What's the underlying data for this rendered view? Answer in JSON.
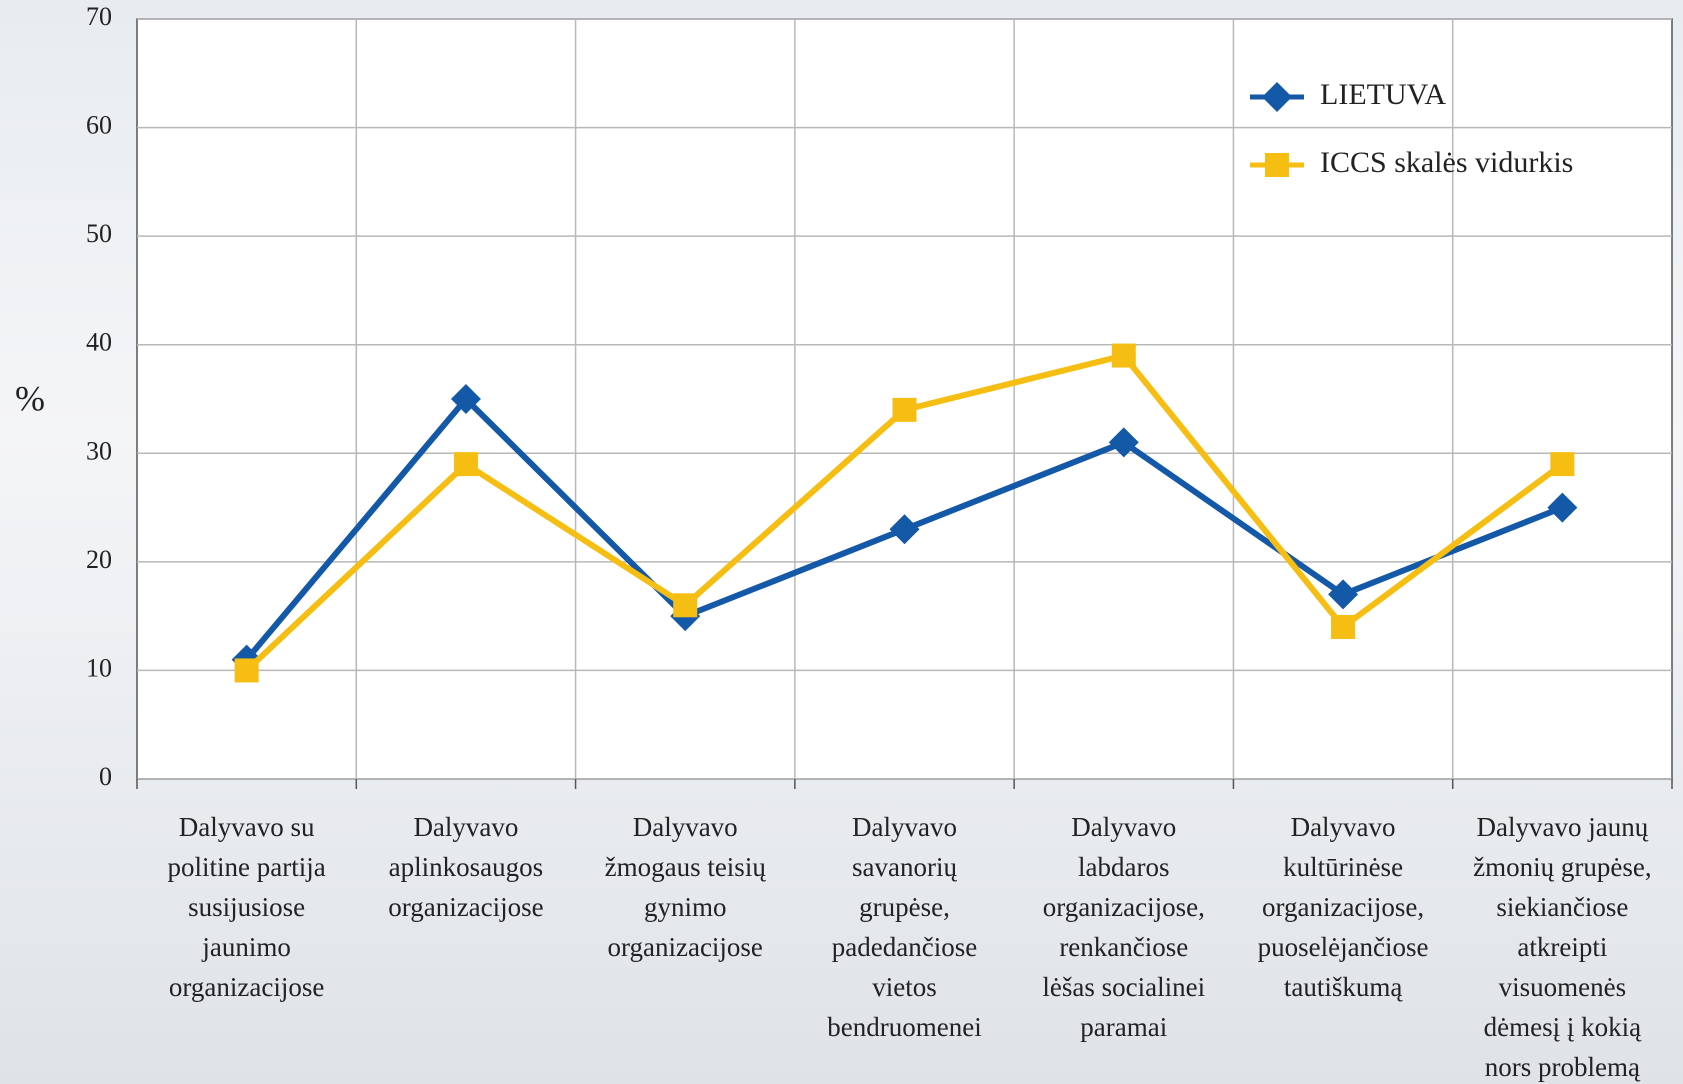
{
  "chart_data": {
    "type": "line",
    "y_label": "%",
    "categories": [
      "Dalyvavo su\npolitine partija\nsusijusiose\njaunimo\norganizacijose",
      "Dalyvavo\naplinkosaugos\norganizacijose",
      "Dalyvavo\nžmogaus teisių\ngynimo\norganizacijose",
      "Dalyvavo\nsavanorių\ngrupėse,\npadedančiose\nvietos\nbendruomenei",
      "Dalyvavo\nlabdaros\norganizacijose,\nrenkančiose\nlėšas socialinei\nparamai",
      "Dalyvavo\nkultūrinėse\norganizacijose,\npuoselėjančiose\ntautiškumą",
      "Dalyvavo jaunų\nžmonių grupėse,\nsiekiančiose\natkreipti\nvisuomenės\ndėmesį į kokią\nnors problemą"
    ],
    "series": [
      {
        "name": "LIETUVA",
        "color": "#1458a8",
        "marker": "diamond",
        "values": [
          11,
          35,
          15,
          23,
          31,
          17,
          25
        ]
      },
      {
        "name": "ICCS skalės vidurkis",
        "color": "#f6be12",
        "marker": "square",
        "values": [
          10,
          29,
          16,
          34,
          39,
          14,
          29
        ]
      }
    ],
    "ylim": [
      0,
      70
    ],
    "yticks": [
      0,
      10,
      20,
      30,
      40,
      50,
      60,
      70
    ],
    "grid": true,
    "legend": "top-right"
  }
}
